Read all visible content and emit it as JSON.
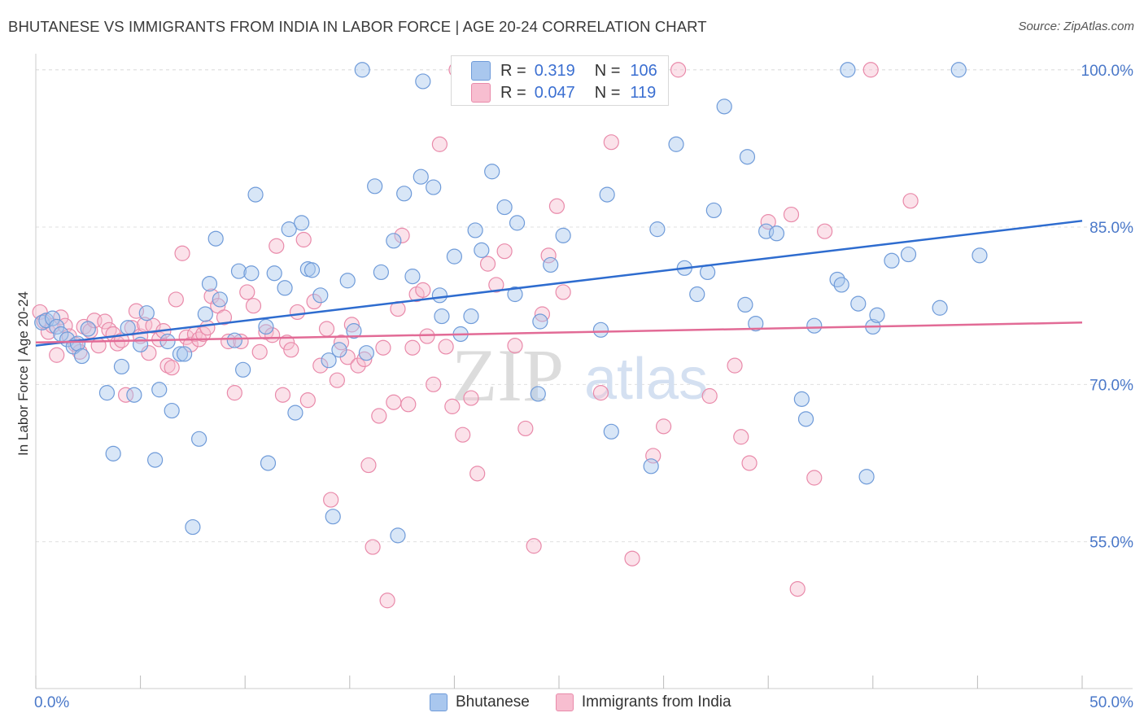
{
  "title": "BHUTANESE VS IMMIGRANTS FROM INDIA IN LABOR FORCE | AGE 20-24 CORRELATION CHART",
  "source": "Source: ZipAtlas.com",
  "watermark": {
    "zip": "ZIP",
    "atlas": "atlas"
  },
  "legend": {
    "rows": [
      {
        "r_label": "R =",
        "r_value": "0.319",
        "n_label": "N =",
        "n_value": "106"
      },
      {
        "r_label": "R =",
        "r_value": "0.047",
        "n_label": "N =",
        "n_value": "119"
      }
    ]
  },
  "colors": {
    "blue_fill": "#a9c7ee",
    "blue_stroke": "#6f9bd9",
    "blue_line": "#2e6ccf",
    "pink_fill": "#f7bed0",
    "pink_stroke": "#e98aaa",
    "pink_line": "#e26b96",
    "tick_label": "#4a78c9",
    "grid": "#e0e0e0"
  },
  "chart_data": {
    "type": "scatter",
    "title": "BHUTANESE VS IMMIGRANTS FROM INDIA IN LABOR FORCE | AGE 20-24 CORRELATION CHART",
    "xlabel": "",
    "ylabel": "In Labor Force | Age 20-24",
    "xlim": [
      0,
      50
    ],
    "ylim": [
      41,
      102
    ],
    "x_tick_labels": [
      "0.0%",
      "50.0%"
    ],
    "y_ticks": [
      55,
      70,
      85,
      100
    ],
    "y_tick_labels": [
      "55.0%",
      "70.0%",
      "85.0%",
      "100.0%"
    ],
    "grid": true,
    "legend_position": "top-center",
    "series": [
      {
        "name": "Bhutanese",
        "color": "#a9c7ee",
        "trend": {
          "x": [
            0,
            50
          ],
          "y": [
            73.7,
            85.6
          ]
        },
        "points": [
          [
            0.3,
            75.9
          ],
          [
            0.5,
            76.1
          ],
          [
            0.8,
            76.3
          ],
          [
            1.0,
            75.5
          ],
          [
            1.2,
            74.8
          ],
          [
            1.5,
            74.3
          ],
          [
            1.8,
            73.6
          ],
          [
            2.0,
            73.9
          ],
          [
            2.2,
            72.7
          ],
          [
            2.5,
            75.3
          ],
          [
            3.4,
            69.2
          ],
          [
            3.7,
            63.4
          ],
          [
            4.1,
            71.7
          ],
          [
            4.4,
            75.4
          ],
          [
            4.7,
            69.0
          ],
          [
            5.0,
            73.8
          ],
          [
            5.3,
            76.8
          ],
          [
            5.7,
            62.8
          ],
          [
            5.9,
            69.5
          ],
          [
            6.3,
            74.1
          ],
          [
            6.5,
            67.5
          ],
          [
            6.9,
            72.9
          ],
          [
            7.1,
            72.9
          ],
          [
            7.5,
            56.4
          ],
          [
            7.8,
            64.8
          ],
          [
            8.1,
            76.7
          ],
          [
            8.3,
            79.6
          ],
          [
            8.6,
            83.9
          ],
          [
            8.8,
            78.1
          ],
          [
            9.5,
            74.2
          ],
          [
            9.7,
            80.8
          ],
          [
            9.9,
            71.4
          ],
          [
            10.3,
            80.6
          ],
          [
            10.5,
            88.1
          ],
          [
            11.0,
            75.5
          ],
          [
            11.1,
            62.5
          ],
          [
            11.4,
            80.6
          ],
          [
            11.9,
            79.2
          ],
          [
            12.1,
            84.8
          ],
          [
            12.4,
            67.3
          ],
          [
            12.7,
            85.4
          ],
          [
            13.0,
            81.0
          ],
          [
            13.2,
            80.9
          ],
          [
            13.6,
            78.5
          ],
          [
            14.0,
            72.3
          ],
          [
            14.2,
            57.4
          ],
          [
            14.5,
            73.3
          ],
          [
            14.9,
            79.9
          ],
          [
            15.2,
            75.1
          ],
          [
            15.6,
            100.0
          ],
          [
            15.8,
            73.0
          ],
          [
            16.2,
            88.9
          ],
          [
            16.5,
            80.7
          ],
          [
            17.1,
            83.7
          ],
          [
            17.3,
            55.6
          ],
          [
            17.6,
            88.2
          ],
          [
            18.0,
            80.3
          ],
          [
            18.4,
            89.8
          ],
          [
            18.5,
            98.9
          ],
          [
            19.0,
            88.8
          ],
          [
            19.3,
            78.5
          ],
          [
            19.4,
            76.5
          ],
          [
            20.0,
            82.2
          ],
          [
            20.3,
            74.8
          ],
          [
            20.8,
            76.5
          ],
          [
            21.0,
            84.7
          ],
          [
            21.3,
            82.8
          ],
          [
            21.8,
            90.3
          ],
          [
            22.4,
            86.9
          ],
          [
            22.9,
            78.6
          ],
          [
            23.0,
            85.4
          ],
          [
            24.0,
            69.1
          ],
          [
            24.1,
            76.0
          ],
          [
            24.6,
            81.4
          ],
          [
            25.2,
            84.2
          ],
          [
            27.0,
            75.2
          ],
          [
            27.3,
            88.1
          ],
          [
            27.5,
            65.5
          ],
          [
            29.4,
            62.2
          ],
          [
            29.7,
            84.8
          ],
          [
            30.6,
            92.9
          ],
          [
            31.0,
            81.1
          ],
          [
            31.6,
            78.6
          ],
          [
            32.1,
            80.7
          ],
          [
            32.4,
            86.6
          ],
          [
            32.9,
            96.5
          ],
          [
            33.9,
            77.6
          ],
          [
            34.0,
            91.7
          ],
          [
            34.4,
            75.8
          ],
          [
            34.9,
            84.6
          ],
          [
            35.4,
            84.4
          ],
          [
            36.6,
            68.6
          ],
          [
            36.8,
            66.7
          ],
          [
            37.2,
            75.6
          ],
          [
            38.3,
            80.0
          ],
          [
            38.5,
            79.5
          ],
          [
            38.8,
            100.0
          ],
          [
            39.3,
            77.7
          ],
          [
            39.7,
            61.2
          ],
          [
            40.0,
            75.5
          ],
          [
            40.2,
            76.6
          ],
          [
            40.9,
            81.8
          ],
          [
            41.7,
            82.4
          ],
          [
            43.2,
            77.3
          ],
          [
            44.1,
            100.0
          ],
          [
            45.1,
            82.3
          ]
        ]
      },
      {
        "name": "Immigrants from India",
        "color": "#f7bed0",
        "trend": {
          "x": [
            0,
            50
          ],
          "y": [
            74.0,
            75.9
          ]
        },
        "points": [
          [
            0.2,
            76.9
          ],
          [
            0.4,
            76.0
          ],
          [
            0.6,
            75.0
          ],
          [
            0.8,
            75.6
          ],
          [
            1.0,
            72.8
          ],
          [
            1.2,
            76.4
          ],
          [
            1.4,
            75.6
          ],
          [
            1.6,
            74.6
          ],
          [
            1.9,
            73.8
          ],
          [
            2.1,
            73.1
          ],
          [
            2.3,
            75.5
          ],
          [
            2.6,
            75.1
          ],
          [
            2.8,
            76.1
          ],
          [
            3.0,
            73.7
          ],
          [
            3.3,
            76.0
          ],
          [
            3.5,
            75.2
          ],
          [
            3.7,
            74.8
          ],
          [
            3.9,
            73.9
          ],
          [
            4.1,
            74.2
          ],
          [
            4.3,
            69.0
          ],
          [
            4.6,
            75.4
          ],
          [
            4.8,
            77.0
          ],
          [
            5.0,
            74.6
          ],
          [
            5.2,
            75.7
          ],
          [
            5.4,
            73.0
          ],
          [
            5.6,
            75.6
          ],
          [
            5.9,
            74.3
          ],
          [
            6.1,
            75.1
          ],
          [
            6.3,
            71.8
          ],
          [
            6.5,
            71.6
          ],
          [
            6.7,
            78.1
          ],
          [
            7.0,
            82.5
          ],
          [
            7.2,
            74.5
          ],
          [
            7.4,
            73.8
          ],
          [
            7.6,
            74.8
          ],
          [
            7.8,
            74.3
          ],
          [
            8.0,
            74.8
          ],
          [
            8.2,
            75.4
          ],
          [
            8.4,
            78.4
          ],
          [
            8.7,
            77.5
          ],
          [
            9.0,
            76.4
          ],
          [
            9.2,
            74.1
          ],
          [
            9.5,
            69.2
          ],
          [
            9.8,
            74.1
          ],
          [
            10.1,
            78.8
          ],
          [
            10.4,
            77.5
          ],
          [
            10.7,
            73.1
          ],
          [
            11.0,
            75.0
          ],
          [
            11.3,
            74.7
          ],
          [
            11.5,
            83.2
          ],
          [
            11.8,
            69.0
          ],
          [
            12.0,
            74.0
          ],
          [
            12.2,
            73.3
          ],
          [
            12.5,
            76.9
          ],
          [
            12.8,
            83.8
          ],
          [
            13.0,
            68.5
          ],
          [
            13.3,
            77.9
          ],
          [
            13.6,
            71.8
          ],
          [
            13.9,
            75.3
          ],
          [
            14.1,
            59.0
          ],
          [
            14.4,
            70.4
          ],
          [
            14.6,
            74.0
          ],
          [
            14.9,
            72.6
          ],
          [
            15.1,
            75.7
          ],
          [
            15.4,
            71.8
          ],
          [
            15.7,
            72.4
          ],
          [
            15.9,
            62.3
          ],
          [
            16.1,
            54.5
          ],
          [
            16.4,
            67.0
          ],
          [
            16.6,
            73.5
          ],
          [
            16.8,
            49.4
          ],
          [
            17.1,
            68.3
          ],
          [
            17.3,
            77.2
          ],
          [
            17.5,
            84.2
          ],
          [
            17.8,
            68.1
          ],
          [
            18.0,
            73.5
          ],
          [
            18.2,
            78.6
          ],
          [
            18.5,
            79.0
          ],
          [
            18.7,
            74.6
          ],
          [
            19.0,
            70.0
          ],
          [
            19.3,
            92.9
          ],
          [
            19.6,
            73.6
          ],
          [
            19.9,
            67.9
          ],
          [
            20.1,
            100.0
          ],
          [
            20.4,
            65.2
          ],
          [
            20.8,
            68.7
          ],
          [
            21.1,
            61.5
          ],
          [
            21.6,
            81.5
          ],
          [
            22.0,
            79.5
          ],
          [
            22.4,
            82.7
          ],
          [
            22.9,
            73.7
          ],
          [
            23.4,
            65.8
          ],
          [
            23.8,
            54.6
          ],
          [
            24.2,
            76.7
          ],
          [
            24.5,
            82.3
          ],
          [
            24.9,
            87.0
          ],
          [
            25.2,
            78.8
          ],
          [
            26.2,
            100.0
          ],
          [
            27.0,
            69.2
          ],
          [
            27.5,
            93.1
          ],
          [
            28.5,
            53.4
          ],
          [
            29.5,
            63.2
          ],
          [
            30.0,
            66.0
          ],
          [
            30.7,
            100.0
          ],
          [
            32.2,
            68.9
          ],
          [
            33.4,
            71.8
          ],
          [
            33.7,
            65.0
          ],
          [
            34.1,
            62.5
          ],
          [
            35.0,
            85.5
          ],
          [
            36.1,
            86.2
          ],
          [
            36.4,
            50.5
          ],
          [
            37.2,
            61.1
          ],
          [
            37.7,
            84.6
          ],
          [
            39.9,
            100.0
          ],
          [
            41.8,
            87.5
          ]
        ]
      }
    ]
  }
}
